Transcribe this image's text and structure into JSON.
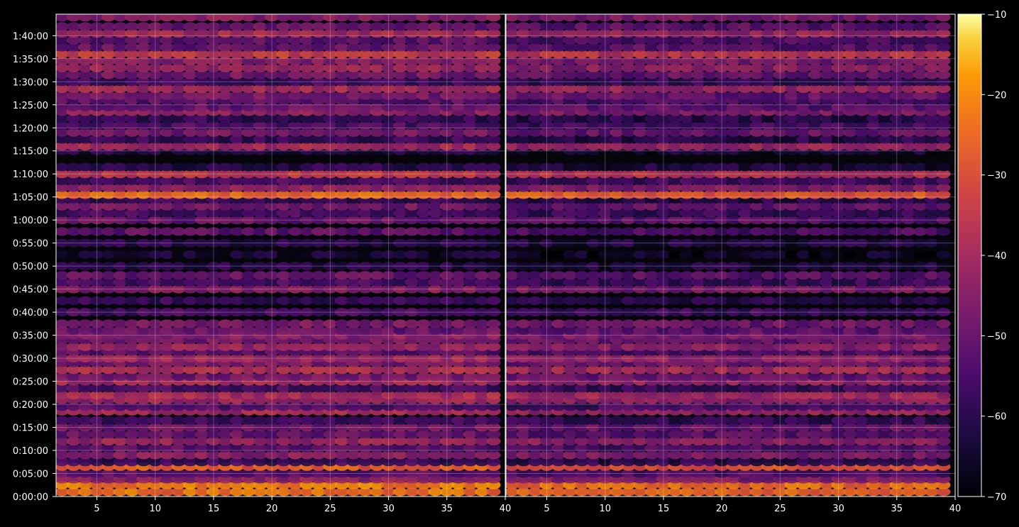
{
  "chart_data": {
    "type": "heatmap",
    "title": "",
    "xlabel": "",
    "ylabel": "",
    "background": "#000000",
    "colormap": "inferno",
    "panels": [
      {
        "name": "left",
        "xlim": [
          1.5,
          40
        ],
        "xticks": [
          5,
          10,
          15,
          20,
          25,
          30,
          35,
          40
        ],
        "xticklabels": [
          "5",
          "10",
          "15",
          "20",
          "25",
          "30",
          "35",
          "40"
        ]
      },
      {
        "name": "right",
        "xlim": [
          1.5,
          40
        ],
        "xticks": [
          5,
          10,
          15,
          20,
          25,
          30,
          35,
          40
        ],
        "xticklabels": [
          "5",
          "10",
          "15",
          "20",
          "25",
          "30",
          "35",
          "40"
        ]
      }
    ],
    "ylim": [
      0,
      6280
    ],
    "yticks": [
      0,
      300,
      600,
      900,
      1200,
      1500,
      1800,
      2100,
      2400,
      2700,
      3000,
      3300,
      3600,
      3900,
      4200,
      4500,
      4800,
      5100,
      5400,
      5700,
      6000
    ],
    "yticklabels": [
      "0:00:00",
      "0:05:00",
      "0:10:00",
      "0:15:00",
      "0:20:00",
      "0:25:00",
      "0:30:00",
      "0:35:00",
      "0:40:00",
      "0:45:00",
      "0:50:00",
      "0:55:00",
      "1:00:00",
      "1:05:00",
      "1:10:00",
      "1:15:00",
      "1:20:00",
      "1:25:00",
      "1:30:00",
      "1:35:00",
      "1:40:00"
    ],
    "grid": true,
    "colorbar": {
      "vmin": -70,
      "vmax": -10,
      "ticks": [
        -10,
        -20,
        -30,
        -40,
        -50,
        -60,
        -70
      ],
      "ticklabels": [
        "−10",
        "−20",
        "−30",
        "−40",
        "−50",
        "−60",
        "−70"
      ]
    },
    "channels_x": [
      2,
      3,
      4,
      5,
      6,
      7,
      8,
      9,
      10,
      11,
      12,
      13,
      14,
      15,
      16,
      17,
      18,
      19,
      20,
      21,
      22,
      23,
      24,
      25,
      26,
      27,
      28,
      29,
      30,
      31,
      32,
      33,
      34,
      35,
      36,
      37,
      38,
      39
    ],
    "band_intensity_db": [
      {
        "t": 60,
        "v": -24
      },
      {
        "t": 150,
        "v": -22
      },
      {
        "t": 225,
        "v": -44
      },
      {
        "t": 300,
        "v": -52
      },
      {
        "t": 390,
        "v": -27
      },
      {
        "t": 450,
        "v": -58
      },
      {
        "t": 540,
        "v": -44
      },
      {
        "t": 630,
        "v": -52
      },
      {
        "t": 720,
        "v": -42
      },
      {
        "t": 810,
        "v": -50
      },
      {
        "t": 900,
        "v": -48
      },
      {
        "t": 990,
        "v": -56
      },
      {
        "t": 1110,
        "v": -40
      },
      {
        "t": 1170,
        "v": -54
      },
      {
        "t": 1260,
        "v": -42
      },
      {
        "t": 1320,
        "v": -39
      },
      {
        "t": 1410,
        "v": -55
      },
      {
        "t": 1500,
        "v": -40
      },
      {
        "t": 1560,
        "v": -48
      },
      {
        "t": 1650,
        "v": -38
      },
      {
        "t": 1740,
        "v": -47
      },
      {
        "t": 1800,
        "v": -41
      },
      {
        "t": 1890,
        "v": -52
      },
      {
        "t": 1950,
        "v": -42
      },
      {
        "t": 2040,
        "v": -48
      },
      {
        "t": 2100,
        "v": -45
      },
      {
        "t": 2160,
        "v": -50
      },
      {
        "t": 2250,
        "v": -47
      },
      {
        "t": 2400,
        "v": -55
      },
      {
        "t": 2550,
        "v": -58
      },
      {
        "t": 2700,
        "v": -45
      },
      {
        "t": 2790,
        "v": -55
      },
      {
        "t": 2880,
        "v": -50
      },
      {
        "t": 3000,
        "v": -60
      },
      {
        "t": 3150,
        "v": -64
      },
      {
        "t": 3300,
        "v": -60
      },
      {
        "t": 3450,
        "v": -52
      },
      {
        "t": 3600,
        "v": -50
      },
      {
        "t": 3690,
        "v": -55
      },
      {
        "t": 3780,
        "v": -48
      },
      {
        "t": 3870,
        "v": -58
      },
      {
        "t": 3930,
        "v": -25
      },
      {
        "t": 4020,
        "v": -44
      },
      {
        "t": 4110,
        "v": -55
      },
      {
        "t": 4200,
        "v": -35
      },
      {
        "t": 4290,
        "v": -60
      },
      {
        "t": 4500,
        "v": -62
      },
      {
        "t": 4560,
        "v": -40
      },
      {
        "t": 4650,
        "v": -58
      },
      {
        "t": 4740,
        "v": -48
      },
      {
        "t": 4830,
        "v": -54
      },
      {
        "t": 4920,
        "v": -58
      },
      {
        "t": 5010,
        "v": -44
      },
      {
        "t": 5070,
        "v": -50
      },
      {
        "t": 5160,
        "v": -52
      },
      {
        "t": 5220,
        "v": -48
      },
      {
        "t": 5310,
        "v": -40
      },
      {
        "t": 5400,
        "v": -56
      },
      {
        "t": 5490,
        "v": -48
      },
      {
        "t": 5580,
        "v": -42
      },
      {
        "t": 5670,
        "v": -45
      },
      {
        "t": 5760,
        "v": -34
      },
      {
        "t": 5850,
        "v": -50
      },
      {
        "t": 5940,
        "v": -52
      },
      {
        "t": 6030,
        "v": -40
      },
      {
        "t": 6120,
        "v": -50
      },
      {
        "t": 6240,
        "v": -45
      }
    ]
  }
}
